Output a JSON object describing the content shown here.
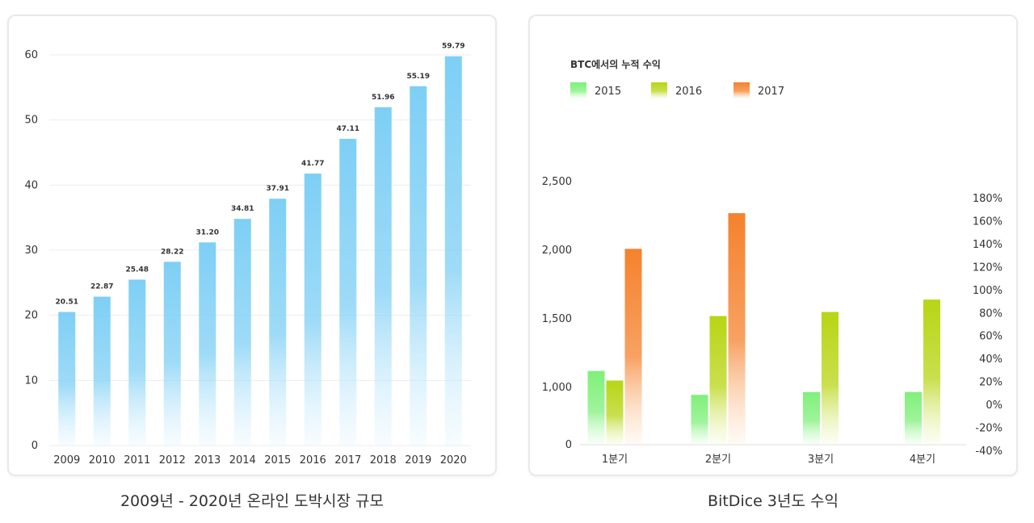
{
  "chart_data": [
    {
      "type": "bar",
      "categories": [
        "2009",
        "2010",
        "2011",
        "2012",
        "2013",
        "2014",
        "2015",
        "2016",
        "2017",
        "2018",
        "2019",
        "2020"
      ],
      "values": [
        20.51,
        22.87,
        25.48,
        28.22,
        31.2,
        34.81,
        37.91,
        41.77,
        47.11,
        51.96,
        55.19,
        59.79
      ],
      "data_labels": [
        "20.51",
        "22.87",
        "25.48",
        "28.22",
        "31.20",
        "34.81",
        "37.91",
        "41.77",
        "47.11",
        "51.96",
        "55.19",
        "59.79"
      ],
      "y_ticks": [
        "0",
        "10",
        "20",
        "30",
        "40",
        "50",
        "60"
      ],
      "ylim": [
        0,
        60
      ],
      "grid": true,
      "color": "#7ecff5",
      "caption": "2009년 - 2020년 온라인 도박시장 규모"
    },
    {
      "type": "bar",
      "categories": [
        "1분기",
        "2분기",
        "3분기",
        "4분기"
      ],
      "legend_title": "BTC에서의 누적 수익",
      "legend_position": "top-left",
      "series": [
        {
          "name": "2015",
          "color": "#7ff07a",
          "values": [
            1120,
            870,
            920,
            920
          ]
        },
        {
          "name": "2016",
          "color": "#b8d514",
          "values": [
            1050,
            1520,
            1550,
            1640
          ]
        },
        {
          "name": "2017",
          "color": "#f5822d",
          "values": [
            2010,
            2270,
            null,
            null
          ]
        }
      ],
      "left_axis_ticks": [
        "0",
        "1,000",
        "1,500",
        "2,000",
        "2,500"
      ],
      "right_axis_ticks": [
        "-40%",
        "-20%",
        "0%",
        "20%",
        "40%",
        "60%",
        "80%",
        "100%",
        "120%",
        "140%",
        "160%",
        "180%"
      ],
      "grid": false,
      "caption": "BitDice 3년도 수익"
    }
  ]
}
